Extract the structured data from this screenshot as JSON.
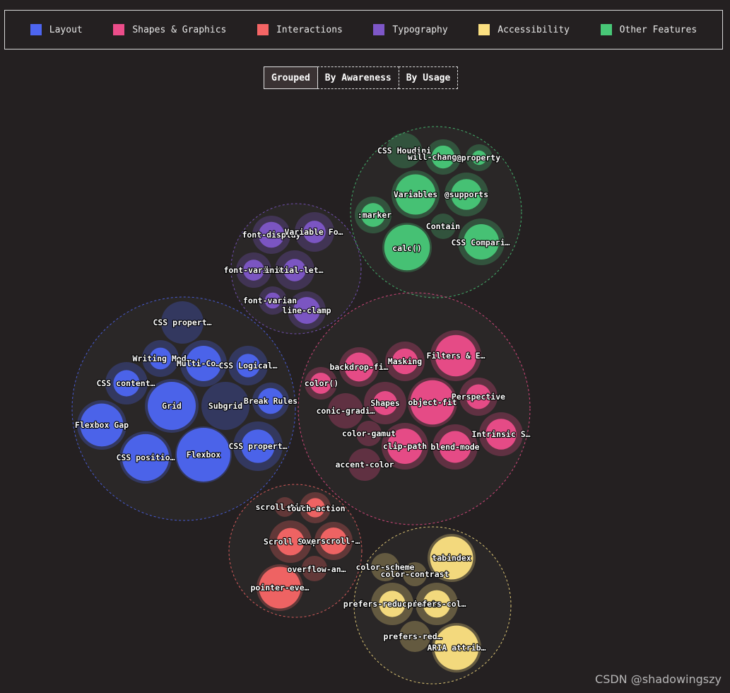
{
  "legend": [
    {
      "label": "Layout",
      "color": "#4d65f0"
    },
    {
      "label": "Shapes & Graphics",
      "color": "#ec4d8a"
    },
    {
      "label": "Interactions",
      "color": "#f56565"
    },
    {
      "label": "Typography",
      "color": "#7e57c8"
    },
    {
      "label": "Accessibility",
      "color": "#fbe081"
    },
    {
      "label": "Other Features",
      "color": "#48c777"
    }
  ],
  "toggle": {
    "grouped": "Grouped",
    "by_awareness": "By Awareness",
    "by_usage": "By Usage",
    "active": "grouped"
  },
  "watermark": "CSDN @shadowingszy",
  "chart_data": {
    "type": "bubble",
    "groups": [
      {
        "category": "Other Features",
        "color": "#48c777",
        "items": [
          {
            "label": "CSS Houdini",
            "usage": 0.0,
            "awareness": 0.4
          },
          {
            "label": "will-change",
            "usage": 0.45,
            "awareness": 0.4
          },
          {
            "label": "@property",
            "usage": 0.25,
            "awareness": 0.35
          },
          {
            "label": "Variables",
            "usage": 0.8,
            "awareness": 0.8
          },
          {
            "label": "@supports",
            "usage": 0.55,
            "awareness": 0.6
          },
          {
            "label": ":marker",
            "usage": 0.45,
            "awareness": 0.4
          },
          {
            "label": "Contain",
            "usage": 0.0,
            "awareness": 0.3
          },
          {
            "label": "calc()",
            "usage": 0.95,
            "awareness": 0.85
          },
          {
            "label": "CSS Compari…",
            "usage": 0.65,
            "awareness": 0.65
          }
        ]
      },
      {
        "category": "Typography",
        "color": "#7e57c8",
        "items": [
          {
            "label": "font-display",
            "usage": 0.5,
            "awareness": 0.5
          },
          {
            "label": "Variable Fo…",
            "usage": 0.3,
            "awareness": 0.5
          },
          {
            "label": "font-variant",
            "usage": 0.35,
            "awareness": 0.45
          },
          {
            "label": "initial-let…",
            "usage": 0.3,
            "awareness": 0.5
          },
          {
            "label": "font-varian",
            "usage": 0.3,
            "awareness": 0.4
          },
          {
            "label": "line-clamp",
            "usage": 0.55,
            "awareness": 0.5
          }
        ]
      },
      {
        "category": "Layout",
        "color": "#4d65f0",
        "items": [
          {
            "label": "CSS propert…",
            "usage": 0.0,
            "awareness": 0.55
          },
          {
            "label": "Writing Mod…",
            "usage": 0.35,
            "awareness": 0.45
          },
          {
            "label": "Multi-Co…",
            "usage": 0.65,
            "awareness": 0.55
          },
          {
            "label": "CSS Logical…",
            "usage": 0.35,
            "awareness": 0.5
          },
          {
            "label": "CSS content…",
            "usage": 0.4,
            "awareness": 0.5
          },
          {
            "label": "Grid",
            "usage": 0.9,
            "awareness": 0.9
          },
          {
            "label": "Subgrid",
            "usage": 0.0,
            "awareness": 0.8
          },
          {
            "label": "Break Rules",
            "usage": 0.55,
            "awareness": 0.5
          },
          {
            "label": "Flexbox Gap",
            "usage": 0.85,
            "awareness": 0.8
          },
          {
            "label": "CSS positio…",
            "usage": 0.9,
            "awareness": 0.9
          },
          {
            "label": "Flexbox",
            "usage": 1.0,
            "awareness": 0.95
          },
          {
            "label": "CSS propert…",
            "usage": 0.5,
            "awareness": 0.8
          }
        ]
      },
      {
        "category": "Shapes & Graphics",
        "color": "#ec4d8a",
        "items": [
          {
            "label": "backdrop-fi…",
            "usage": 0.6,
            "awareness": 0.6
          },
          {
            "label": "Masking",
            "usage": 0.45,
            "awareness": 0.6
          },
          {
            "label": "Filters & E…",
            "usage": 0.75,
            "awareness": 0.8
          },
          {
            "label": "color()",
            "usage": 0.45,
            "awareness": 0.45
          },
          {
            "label": "Shapes",
            "usage": 0.3,
            "awareness": 0.55
          },
          {
            "label": "object-fit",
            "usage": 0.9,
            "awareness": 0.9
          },
          {
            "label": "Perspective",
            "usage": 0.45,
            "awareness": 0.5
          },
          {
            "label": "conic-gradi…",
            "usage": 0.0,
            "awareness": 0.45
          },
          {
            "label": "color-gamut",
            "usage": 0.0,
            "awareness": 0.35
          },
          {
            "label": "clip-path",
            "usage": 0.65,
            "awareness": 0.8
          },
          {
            "label": "blend-mode",
            "usage": 0.55,
            "awareness": 0.75
          },
          {
            "label": "Intrinsic S…",
            "usage": 0.55,
            "awareness": 0.65
          },
          {
            "label": "accent-color",
            "usage": 0.0,
            "awareness": 0.45
          }
        ]
      },
      {
        "category": "Interactions",
        "color": "#f56565",
        "items": [
          {
            "label": "scroll-time…",
            "usage": 0.0,
            "awareness": 0.3
          },
          {
            "label": "touch-action",
            "usage": 0.4,
            "awareness": 0.45
          },
          {
            "label": "Scroll Snap",
            "usage": 0.45,
            "awareness": 0.6
          },
          {
            "label": "overscroll-…",
            "usage": 0.55,
            "awareness": 0.55
          },
          {
            "label": "overflow-an…",
            "usage": 0.0,
            "awareness": 0.35
          },
          {
            "label": "pointer-eve…",
            "usage": 0.9,
            "awareness": 0.75
          }
        ]
      },
      {
        "category": "Accessibility",
        "color": "#fbe081",
        "items": [
          {
            "label": "color-scheme",
            "usage": 0.0,
            "awareness": 0.4
          },
          {
            "label": "tabindex",
            "usage": 0.9,
            "awareness": 0.75
          },
          {
            "label": "color-contrast",
            "usage": 0.0,
            "awareness": 0.35
          },
          {
            "label": "prefers-reduced-data",
            "usage": 0.4,
            "awareness": 0.55
          },
          {
            "label": "prefers-col…",
            "usage": 0.45,
            "awareness": 0.55
          },
          {
            "label": "prefers-red…",
            "usage": 0.0,
            "awareness": 0.45
          },
          {
            "label": "ARIA attrib…",
            "usage": 0.9,
            "awareness": 0.75
          }
        ]
      }
    ]
  }
}
